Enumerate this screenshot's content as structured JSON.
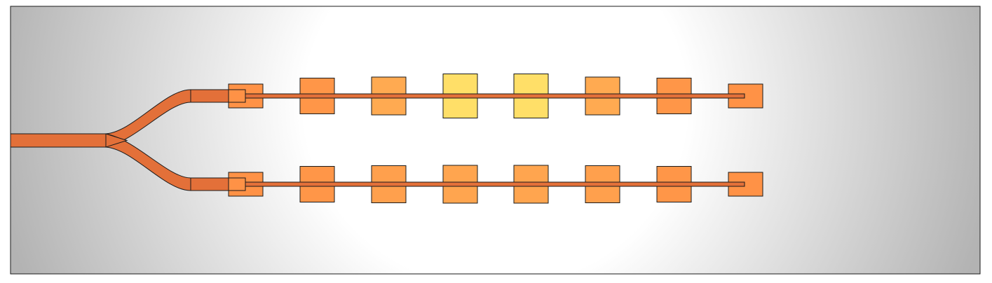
{
  "diagram": {
    "type": "waveguide-power-splitter-with-pad-array",
    "input_branch_count": 1,
    "output_branch_count": 2,
    "pads_per_branch": 8,
    "colors": {
      "background_edge": "#b3b3b3",
      "background_center": "#ffffff",
      "waveguide": "#e37039",
      "pad_cool": "#ff8340",
      "pad_hot": "#ffe46a",
      "outline": "#1a1a1a"
    },
    "branches": [
      {
        "name": "upper",
        "pad_heat": [
          0.15,
          0.2,
          0.4,
          0.95,
          0.95,
          0.4,
          0.2,
          0.15
        ]
      },
      {
        "name": "lower",
        "pad_heat": [
          0.15,
          0.2,
          0.3,
          0.35,
          0.35,
          0.3,
          0.2,
          0.15
        ]
      }
    ]
  }
}
